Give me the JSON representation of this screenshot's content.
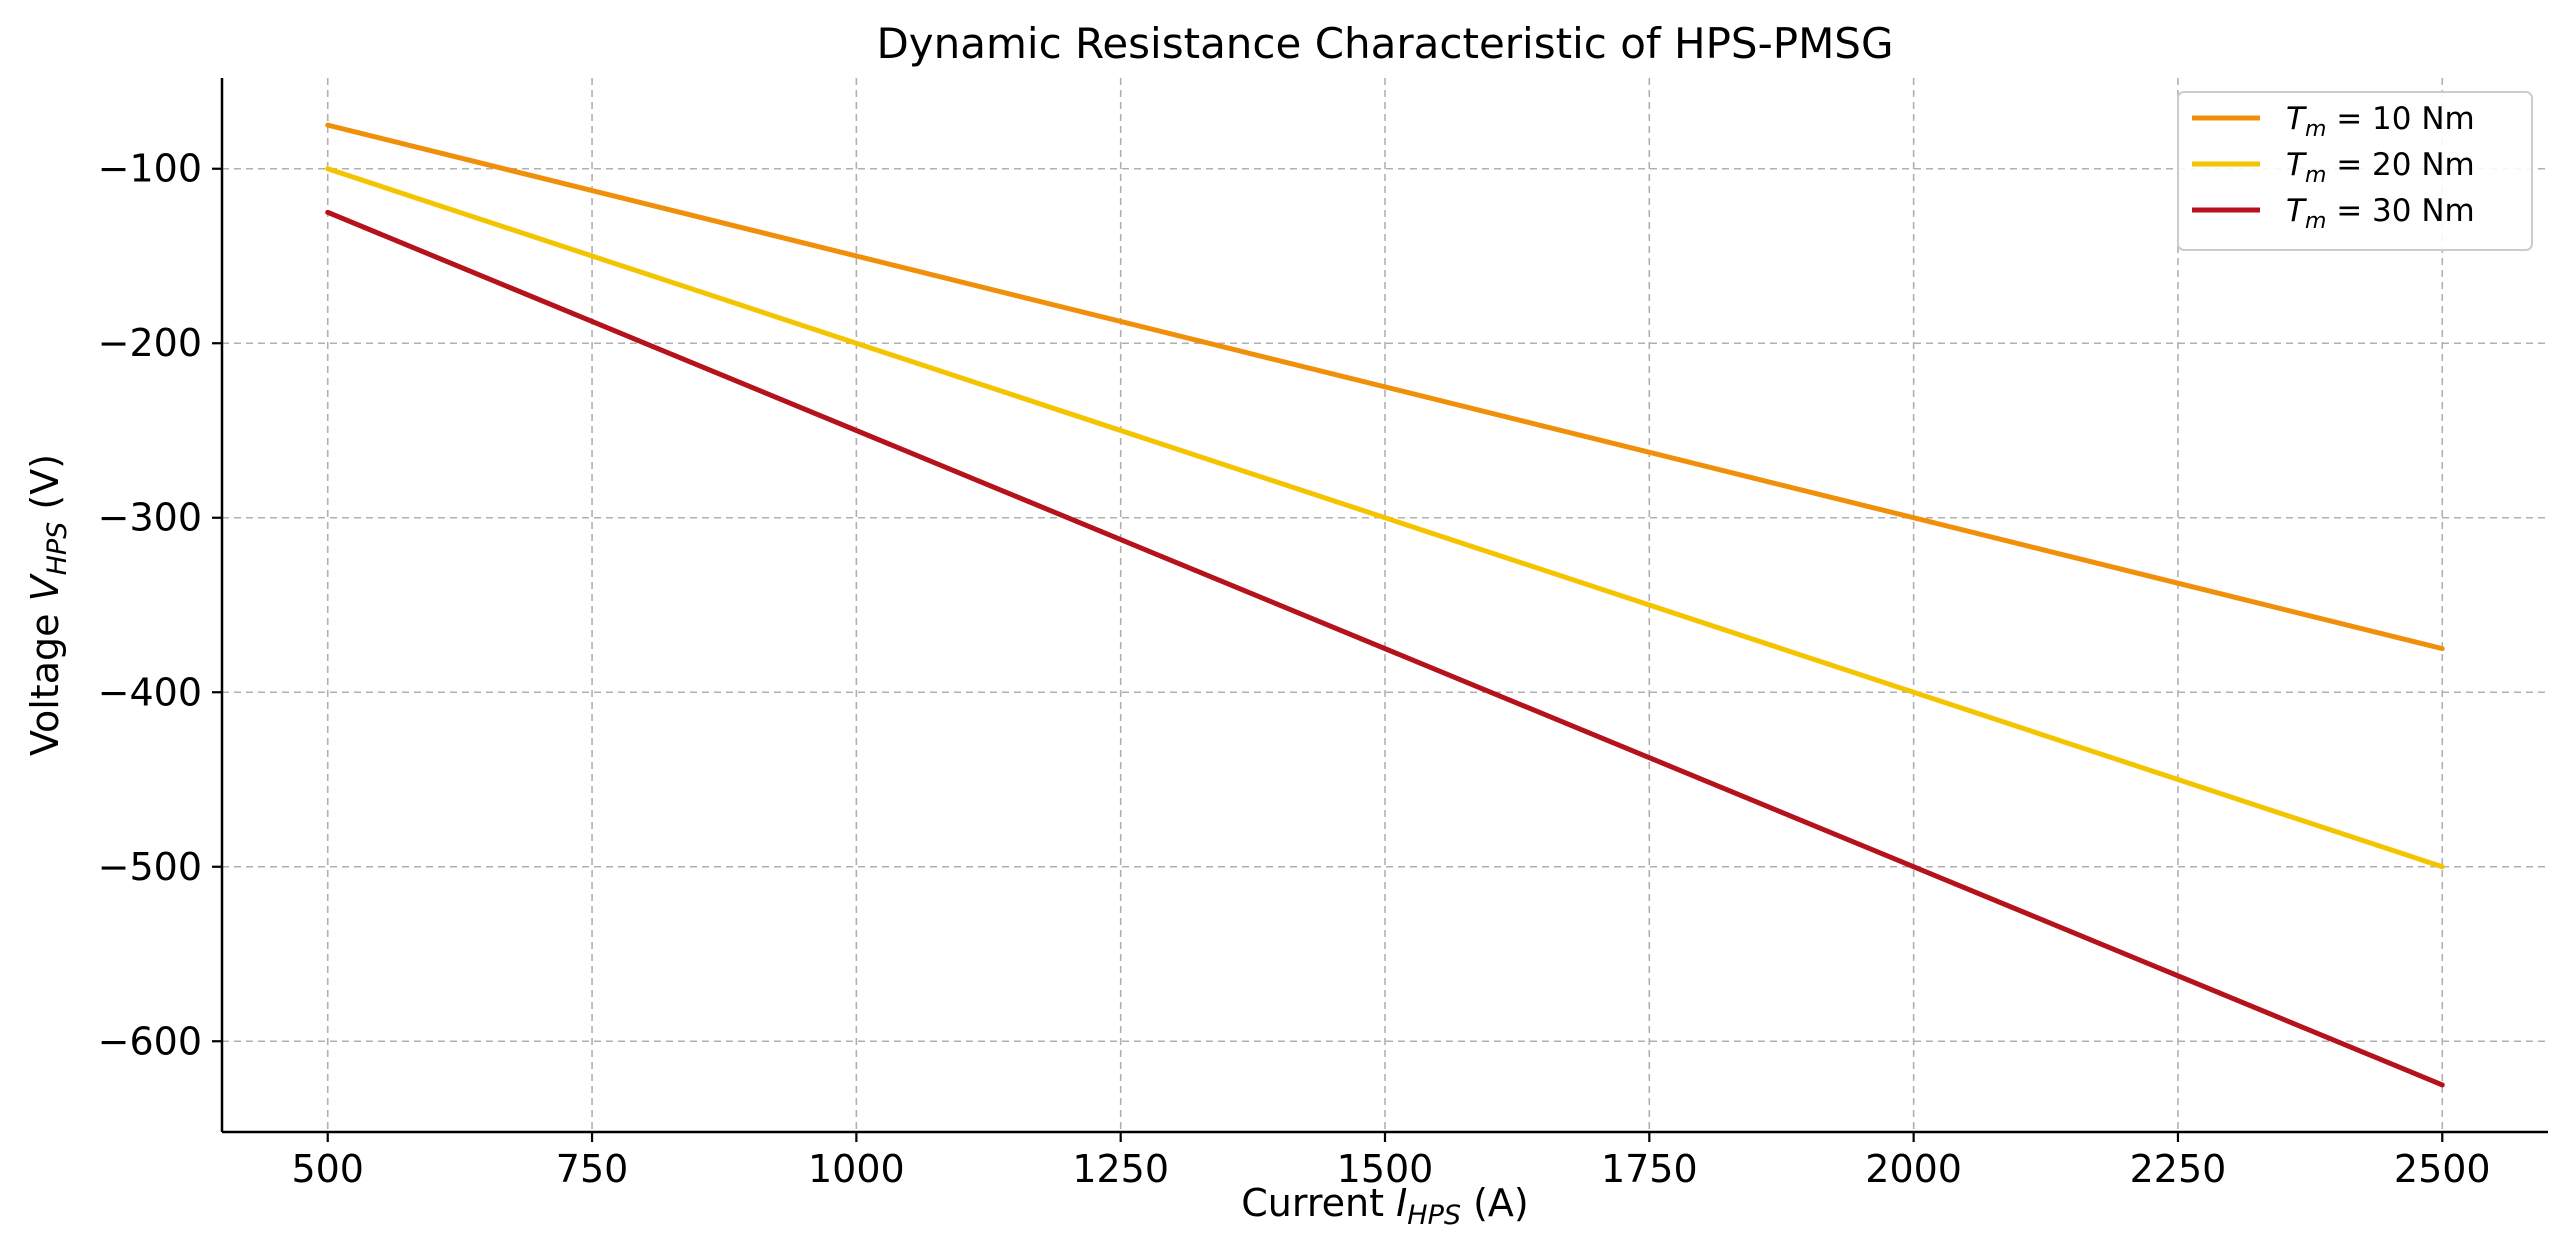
{
  "chart_data": {
    "type": "line",
    "title": "Dynamic Resistance Characteristic of HPS-PMSG",
    "xlabel": {
      "main": "Current ",
      "var": "I",
      "sub": "HPS",
      "unit": " (A)"
    },
    "ylabel": {
      "main": "Voltage ",
      "var": "V",
      "sub": "HPS",
      "unit": " (V)"
    },
    "xlim": [
      400,
      2600
    ],
    "ylim": [
      -652,
      -48
    ],
    "xticks": [
      500,
      750,
      1000,
      1250,
      1500,
      1750,
      2000,
      2250,
      2500
    ],
    "yticks": [
      -100,
      -200,
      -300,
      -400,
      -500,
      -600
    ],
    "grid": true,
    "legend_position": "top-right",
    "x": [
      500,
      2500
    ],
    "series": [
      {
        "name": "T_m = 10 Nm",
        "legend": {
          "var": "T",
          "sub": "m",
          "rest": " = 10 Nm"
        },
        "color": "#f0900a",
        "values": [
          -75,
          -375
        ]
      },
      {
        "name": "T_m = 20 Nm",
        "legend": {
          "var": "T",
          "sub": "m",
          "rest": " = 20 Nm"
        },
        "color": "#f5c400",
        "values": [
          -100,
          -500
        ]
      },
      {
        "name": "T_m = 30 Nm",
        "legend": {
          "var": "T",
          "sub": "m",
          "rest": " = 30 Nm"
        },
        "color": "#b5121b",
        "values": [
          -125,
          -625
        ]
      }
    ]
  }
}
